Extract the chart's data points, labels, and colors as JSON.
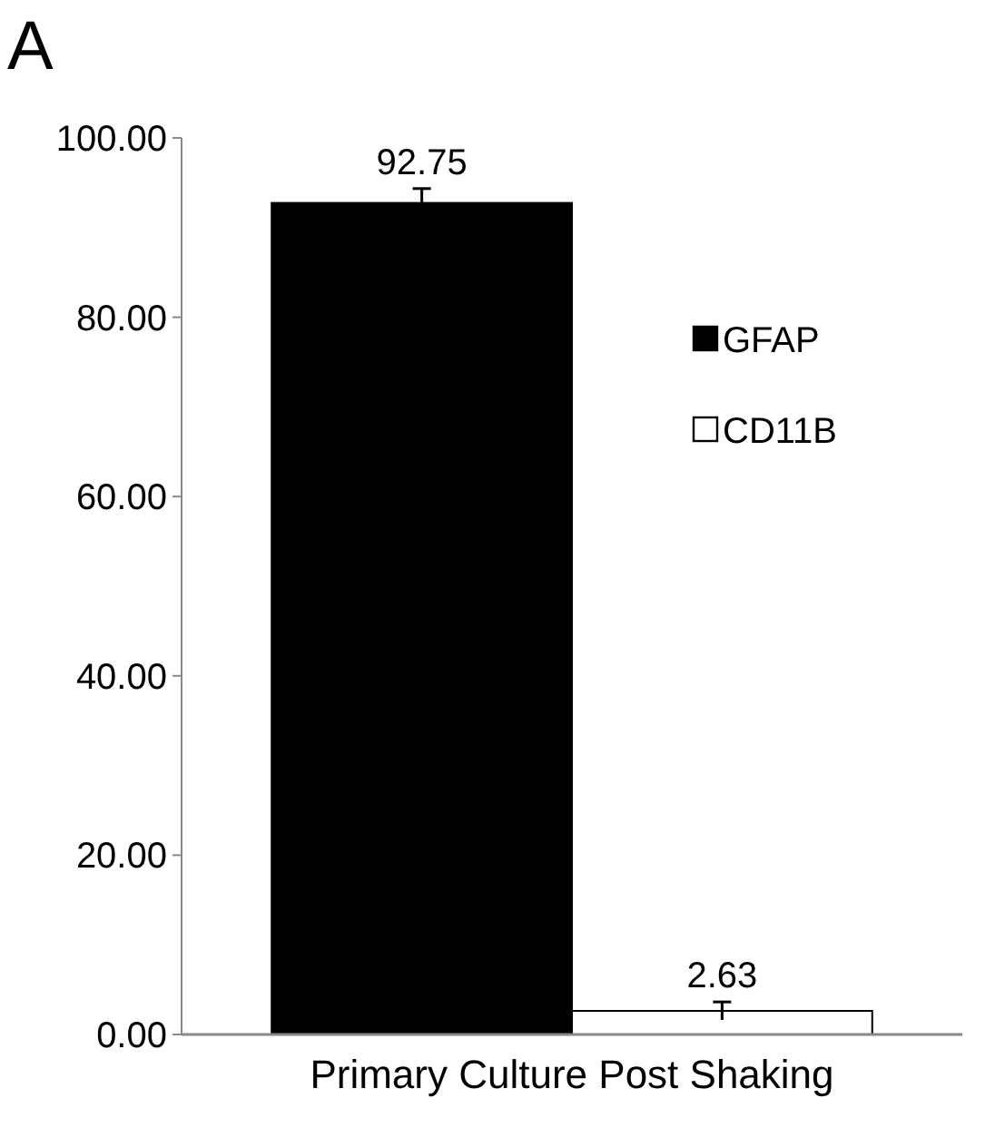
{
  "chart_data": {
    "type": "bar",
    "title": "A",
    "xlabel": "Primary Culture Post Shaking",
    "categories": [
      null,
      null
    ],
    "series": [
      {
        "name": "GFAP",
        "color": "#000000",
        "values": [
          92.75,
          null
        ],
        "errors": [
          1.6,
          null
        ]
      },
      {
        "name": "CD11B",
        "color": "#ffffff",
        "values": [
          null,
          2.63
        ],
        "errors": [
          null,
          1.0
        ]
      }
    ],
    "ylim": [
      0,
      100
    ],
    "yticks": [
      {
        "value": 0,
        "label": "0.00"
      },
      {
        "value": 20,
        "label": "20.00"
      },
      {
        "value": 40,
        "label": "40.00"
      },
      {
        "value": 60,
        "label": "60.00"
      },
      {
        "value": 80,
        "label": "80.00"
      },
      {
        "value": 100,
        "label": "100.00"
      }
    ],
    "data_labels": true,
    "legend": "right",
    "grid": false
  }
}
